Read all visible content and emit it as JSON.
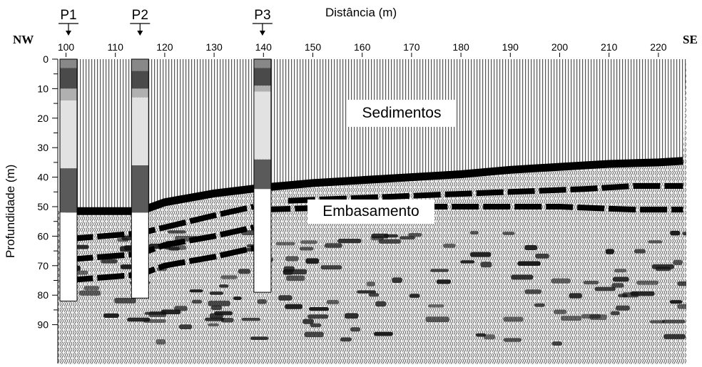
{
  "x_axis": {
    "title": "Distância (m)",
    "ticks": [
      100,
      110,
      120,
      130,
      140,
      150,
      160,
      170,
      180,
      190,
      200,
      210,
      220
    ],
    "left_end": "NW",
    "right_end": "SE"
  },
  "y_axis": {
    "title": "Profundidade (m)",
    "ticks": [
      0,
      10,
      20,
      30,
      40,
      50,
      60,
      70,
      80,
      90
    ]
  },
  "boreholes": [
    {
      "name": "P1",
      "distance": 100.5,
      "bottom_depth": 82,
      "layers": [
        {
          "top": 0,
          "bottom": 3,
          "color": "#888888"
        },
        {
          "top": 3,
          "bottom": 10,
          "color": "#4a4a4a"
        },
        {
          "top": 10,
          "bottom": 14,
          "color": "#b0b0b0"
        },
        {
          "top": 14,
          "bottom": 37,
          "color": "#e2e2e2"
        },
        {
          "top": 37,
          "bottom": 52,
          "color": "#5a5a5a"
        },
        {
          "top": 52,
          "bottom": 82,
          "color": "#ffffff"
        }
      ]
    },
    {
      "name": "P2",
      "distance": 115,
      "bottom_depth": 81,
      "layers": [
        {
          "top": 0,
          "bottom": 4,
          "color": "#888888"
        },
        {
          "top": 4,
          "bottom": 10,
          "color": "#4a4a4a"
        },
        {
          "top": 10,
          "bottom": 13,
          "color": "#b0b0b0"
        },
        {
          "top": 13,
          "bottom": 36,
          "color": "#e2e2e2"
        },
        {
          "top": 36,
          "bottom": 52,
          "color": "#5a5a5a"
        },
        {
          "top": 52,
          "bottom": 81,
          "color": "#ffffff"
        }
      ]
    },
    {
      "name": "P3",
      "distance": 139.8,
      "bottom_depth": 79,
      "layers": [
        {
          "top": 0,
          "bottom": 3,
          "color": "#888888"
        },
        {
          "top": 3,
          "bottom": 9,
          "color": "#4a4a4a"
        },
        {
          "top": 9,
          "bottom": 11,
          "color": "#b0b0b0"
        },
        {
          "top": 11,
          "bottom": 34,
          "color": "#e2e2e2"
        },
        {
          "top": 34,
          "bottom": 44,
          "color": "#5a5a5a"
        },
        {
          "top": 44,
          "bottom": 79,
          "color": "#ffffff"
        }
      ]
    }
  ],
  "labels": {
    "sediments": "Sedimentos",
    "basement": "Embasamento"
  },
  "basement_top": {
    "distance": [
      100,
      110,
      115,
      120,
      130,
      140,
      150,
      160,
      170,
      180,
      190,
      200,
      210,
      220,
      225
    ],
    "depth": [
      51.5,
      51.5,
      51.5,
      48.5,
      45.5,
      43.5,
      42,
      41,
      40,
      39,
      37.5,
      36.5,
      35.5,
      35,
      34.5
    ]
  },
  "deep_reflectors": [
    {
      "distance": [
        100,
        115,
        120,
        130,
        138
      ],
      "depth": [
        61,
        59,
        57,
        53,
        50
      ]
    },
    {
      "distance": [
        100,
        115,
        120,
        130,
        138
      ],
      "depth": [
        68,
        66,
        63,
        60,
        57
      ]
    },
    {
      "distance": [
        100,
        115,
        120,
        130,
        138
      ],
      "depth": [
        75,
        73,
        70,
        67,
        64
      ]
    },
    {
      "distance": [
        145,
        160,
        175,
        190,
        205,
        215,
        225
      ],
      "depth": [
        48,
        47,
        46,
        45,
        44,
        43,
        43
      ]
    },
    {
      "distance": [
        140,
        160,
        180,
        200,
        215,
        225
      ],
      "depth": [
        51,
        50,
        50,
        50,
        51,
        51
      ]
    }
  ],
  "colors": {
    "reflector": "#000000",
    "trace": "#444444",
    "axis": "#000000"
  }
}
